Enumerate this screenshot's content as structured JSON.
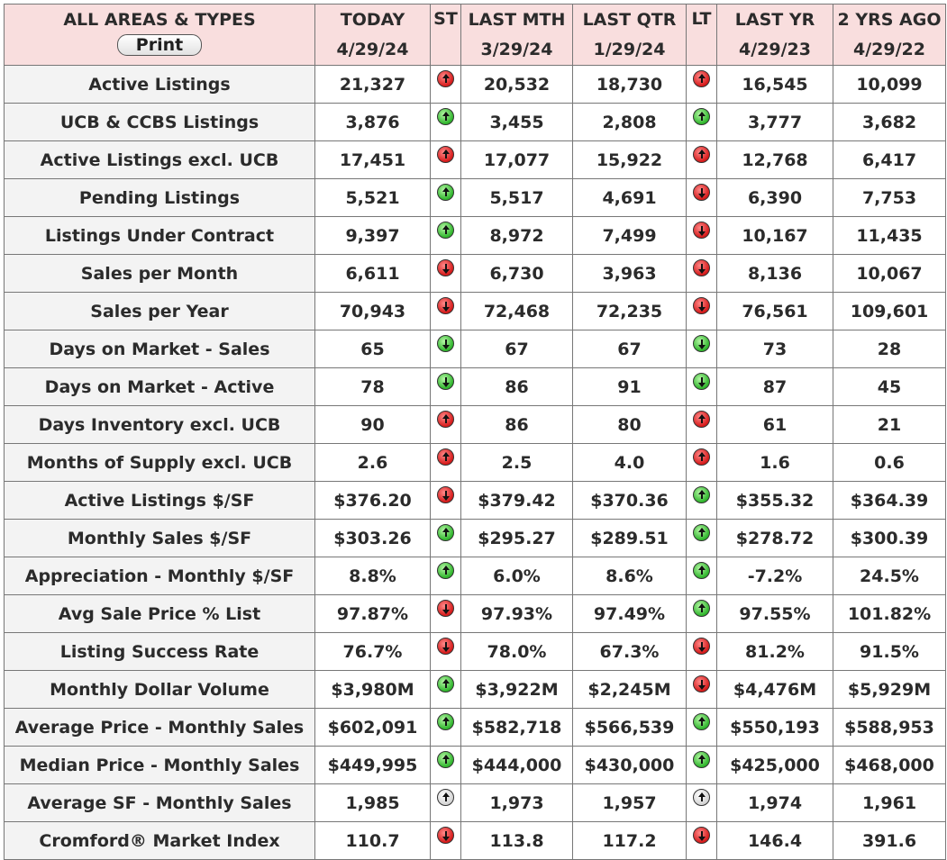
{
  "header": {
    "area_title": "ALL AREAS & TYPES",
    "print_label": "Print",
    "columns": [
      {
        "label": "TODAY",
        "date": "4/29/24"
      },
      {
        "label": "ST",
        "date": ""
      },
      {
        "label": "LAST MTH",
        "date": "3/29/24"
      },
      {
        "label": "LAST QTR",
        "date": "1/29/24"
      },
      {
        "label": "LT",
        "date": ""
      },
      {
        "label": "LAST YR",
        "date": "4/29/23"
      },
      {
        "label": "2 YRS AGO",
        "date": "4/29/22"
      }
    ]
  },
  "colors": {
    "header_bg": "#f9dede",
    "label_bg": "#f3f3f3",
    "arrow_red": "#d61a1a",
    "arrow_green": "#2fb52c",
    "arrow_white": "#ffffff"
  },
  "rows": [
    {
      "label": "Active Listings",
      "today": "21,327",
      "st": {
        "dir": "up",
        "color": "red"
      },
      "last_mth": "20,532",
      "last_qtr": "18,730",
      "lt": {
        "dir": "up",
        "color": "red"
      },
      "last_yr": "16,545",
      "two_yrs": "10,099"
    },
    {
      "label": "UCB & CCBS Listings",
      "today": "3,876",
      "st": {
        "dir": "up",
        "color": "green"
      },
      "last_mth": "3,455",
      "last_qtr": "2,808",
      "lt": {
        "dir": "up",
        "color": "green"
      },
      "last_yr": "3,777",
      "two_yrs": "3,682"
    },
    {
      "label": "Active Listings excl. UCB",
      "today": "17,451",
      "st": {
        "dir": "up",
        "color": "red"
      },
      "last_mth": "17,077",
      "last_qtr": "15,922",
      "lt": {
        "dir": "up",
        "color": "red"
      },
      "last_yr": "12,768",
      "two_yrs": "6,417"
    },
    {
      "label": "Pending Listings",
      "today": "5,521",
      "st": {
        "dir": "up",
        "color": "green"
      },
      "last_mth": "5,517",
      "last_qtr": "4,691",
      "lt": {
        "dir": "down",
        "color": "red"
      },
      "last_yr": "6,390",
      "two_yrs": "7,753"
    },
    {
      "label": "Listings Under Contract",
      "today": "9,397",
      "st": {
        "dir": "up",
        "color": "green"
      },
      "last_mth": "8,972",
      "last_qtr": "7,499",
      "lt": {
        "dir": "down",
        "color": "red"
      },
      "last_yr": "10,167",
      "two_yrs": "11,435"
    },
    {
      "label": "Sales per Month",
      "today": "6,611",
      "st": {
        "dir": "down",
        "color": "red"
      },
      "last_mth": "6,730",
      "last_qtr": "3,963",
      "lt": {
        "dir": "down",
        "color": "red"
      },
      "last_yr": "8,136",
      "two_yrs": "10,067"
    },
    {
      "label": "Sales per Year",
      "today": "70,943",
      "st": {
        "dir": "down",
        "color": "red"
      },
      "last_mth": "72,468",
      "last_qtr": "72,235",
      "lt": {
        "dir": "down",
        "color": "red"
      },
      "last_yr": "76,561",
      "two_yrs": "109,601"
    },
    {
      "label": "Days on Market - Sales",
      "today": "65",
      "st": {
        "dir": "down",
        "color": "green"
      },
      "last_mth": "67",
      "last_qtr": "67",
      "lt": {
        "dir": "down",
        "color": "green"
      },
      "last_yr": "73",
      "two_yrs": "28"
    },
    {
      "label": "Days on Market - Active",
      "today": "78",
      "st": {
        "dir": "down",
        "color": "green"
      },
      "last_mth": "86",
      "last_qtr": "91",
      "lt": {
        "dir": "down",
        "color": "green"
      },
      "last_yr": "87",
      "two_yrs": "45"
    },
    {
      "label": "Days Inventory excl. UCB",
      "today": "90",
      "st": {
        "dir": "up",
        "color": "red"
      },
      "last_mth": "86",
      "last_qtr": "80",
      "lt": {
        "dir": "up",
        "color": "red"
      },
      "last_yr": "61",
      "two_yrs": "21"
    },
    {
      "label": "Months of Supply excl. UCB",
      "today": "2.6",
      "st": {
        "dir": "up",
        "color": "red"
      },
      "last_mth": "2.5",
      "last_qtr": "4.0",
      "lt": {
        "dir": "up",
        "color": "red"
      },
      "last_yr": "1.6",
      "two_yrs": "0.6"
    },
    {
      "label": "Active Listings $/SF",
      "today": "$376.20",
      "st": {
        "dir": "down",
        "color": "red"
      },
      "last_mth": "$379.42",
      "last_qtr": "$370.36",
      "lt": {
        "dir": "up",
        "color": "green"
      },
      "last_yr": "$355.32",
      "two_yrs": "$364.39"
    },
    {
      "label": "Monthly Sales $/SF",
      "today": "$303.26",
      "st": {
        "dir": "up",
        "color": "green"
      },
      "last_mth": "$295.27",
      "last_qtr": "$289.51",
      "lt": {
        "dir": "up",
        "color": "green"
      },
      "last_yr": "$278.72",
      "two_yrs": "$300.39"
    },
    {
      "label": "Appreciation - Monthly $/SF",
      "today": "8.8%",
      "st": {
        "dir": "up",
        "color": "green"
      },
      "last_mth": "6.0%",
      "last_qtr": "8.6%",
      "lt": {
        "dir": "up",
        "color": "green"
      },
      "last_yr": "-7.2%",
      "two_yrs": "24.5%"
    },
    {
      "label": "Avg Sale Price % List",
      "today": "97.87%",
      "st": {
        "dir": "down",
        "color": "red"
      },
      "last_mth": "97.93%",
      "last_qtr": "97.49%",
      "lt": {
        "dir": "up",
        "color": "green"
      },
      "last_yr": "97.55%",
      "two_yrs": "101.82%"
    },
    {
      "label": "Listing Success Rate",
      "today": "76.7%",
      "st": {
        "dir": "down",
        "color": "red"
      },
      "last_mth": "78.0%",
      "last_qtr": "67.3%",
      "lt": {
        "dir": "down",
        "color": "red"
      },
      "last_yr": "81.2%",
      "two_yrs": "91.5%"
    },
    {
      "label": "Monthly Dollar Volume",
      "today": "$3,980M",
      "st": {
        "dir": "up",
        "color": "green"
      },
      "last_mth": "$3,922M",
      "last_qtr": "$2,245M",
      "lt": {
        "dir": "down",
        "color": "red"
      },
      "last_yr": "$4,476M",
      "two_yrs": "$5,929M"
    },
    {
      "label": "Average Price - Monthly Sales",
      "today": "$602,091",
      "st": {
        "dir": "up",
        "color": "green"
      },
      "last_mth": "$582,718",
      "last_qtr": "$566,539",
      "lt": {
        "dir": "up",
        "color": "green"
      },
      "last_yr": "$550,193",
      "two_yrs": "$588,953"
    },
    {
      "label": "Median Price - Monthly Sales",
      "today": "$449,995",
      "st": {
        "dir": "up",
        "color": "green"
      },
      "last_mth": "$444,000",
      "last_qtr": "$430,000",
      "lt": {
        "dir": "up",
        "color": "green"
      },
      "last_yr": "$425,000",
      "two_yrs": "$468,000"
    },
    {
      "label": "Average SF - Monthly Sales",
      "today": "1,985",
      "st": {
        "dir": "up",
        "color": "white"
      },
      "last_mth": "1,973",
      "last_qtr": "1,957",
      "lt": {
        "dir": "up",
        "color": "white"
      },
      "last_yr": "1,974",
      "two_yrs": "1,961"
    },
    {
      "label": "Cromford® Market Index",
      "today": "110.7",
      "st": {
        "dir": "down",
        "color": "red"
      },
      "last_mth": "113.8",
      "last_qtr": "117.2",
      "lt": {
        "dir": "down",
        "color": "red"
      },
      "last_yr": "146.4",
      "two_yrs": "391.6"
    }
  ]
}
